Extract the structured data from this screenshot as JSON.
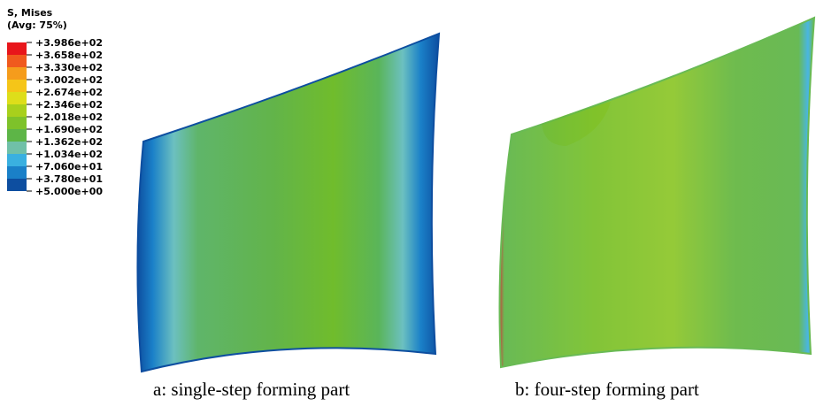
{
  "legend": {
    "title": "S, Mises",
    "subtitle": "(Avg: 75%)",
    "labels": [
      "+3.986e+02",
      "+3.658e+02",
      "+3.330e+02",
      "+3.002e+02",
      "+2.674e+02",
      "+2.346e+02",
      "+2.018e+02",
      "+1.690e+02",
      "+1.362e+02",
      "+1.034e+02",
      "+7.060e+01",
      "+3.780e+01",
      "+5.000e+00"
    ]
  },
  "captions": [
    "a: single-step forming part",
    "b: four-step forming part"
  ]
}
